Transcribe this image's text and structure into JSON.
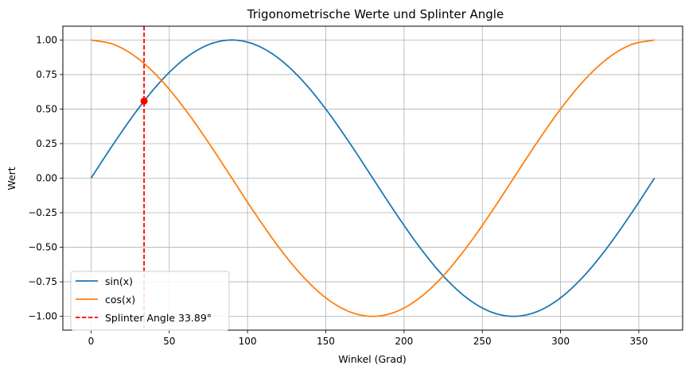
{
  "chart_data": {
    "type": "line",
    "title": "Trigonometrische Werte und Splinter Angle",
    "xlabel": "Winkel (Grad)",
    "ylabel": "Wert",
    "xlim": [
      -18,
      378
    ],
    "ylim": [
      -1.1,
      1.1
    ],
    "xticks": [
      0,
      50,
      100,
      150,
      200,
      250,
      300,
      350
    ],
    "xtick_labels": [
      "0",
      "50",
      "100",
      "150",
      "200",
      "250",
      "300",
      "350"
    ],
    "yticks": [
      -1.0,
      -0.75,
      -0.5,
      -0.25,
      0.0,
      0.25,
      0.5,
      0.75,
      1.0
    ],
    "ytick_labels": [
      "−1.00",
      "−0.75",
      "−0.50",
      "−0.25",
      "0.00",
      "0.25",
      "0.50",
      "0.75",
      "1.00"
    ],
    "grid": true,
    "legend_position": "lower-left",
    "series": [
      {
        "name": "sin(x)",
        "color": "#1f77b4",
        "x": [
          0,
          15,
          30,
          45,
          60,
          75,
          90,
          105,
          120,
          135,
          150,
          165,
          180,
          195,
          210,
          225,
          240,
          255,
          270,
          285,
          300,
          315,
          330,
          345,
          360
        ],
        "y": [
          0.0,
          0.2588,
          0.5,
          0.7071,
          0.866,
          0.9659,
          1.0,
          0.9659,
          0.866,
          0.7071,
          0.5,
          0.2588,
          0.0,
          -0.2588,
          -0.5,
          -0.7071,
          -0.866,
          -0.9659,
          -1.0,
          -0.9659,
          -0.866,
          -0.7071,
          -0.5,
          -0.2588,
          0.0
        ]
      },
      {
        "name": "cos(x)",
        "color": "#ff7f0e",
        "x": [
          0,
          15,
          30,
          45,
          60,
          75,
          90,
          105,
          120,
          135,
          150,
          165,
          180,
          195,
          210,
          225,
          240,
          255,
          270,
          285,
          300,
          315,
          330,
          345,
          360
        ],
        "y": [
          1.0,
          0.9659,
          0.866,
          0.7071,
          0.5,
          0.2588,
          0.0,
          -0.2588,
          -0.5,
          -0.7071,
          -0.866,
          -0.9659,
          -1.0,
          -0.9659,
          -0.866,
          -0.7071,
          -0.5,
          -0.2588,
          0.0,
          0.2588,
          0.5,
          0.7071,
          0.866,
          0.9659,
          1.0
        ]
      }
    ],
    "vline": {
      "name": "Splinter Angle 33.89°",
      "x": 33.89,
      "color": "#ff0000",
      "style": "dashed"
    },
    "marker": {
      "x": 33.89,
      "y": 0.558,
      "color": "#ff0000"
    }
  }
}
